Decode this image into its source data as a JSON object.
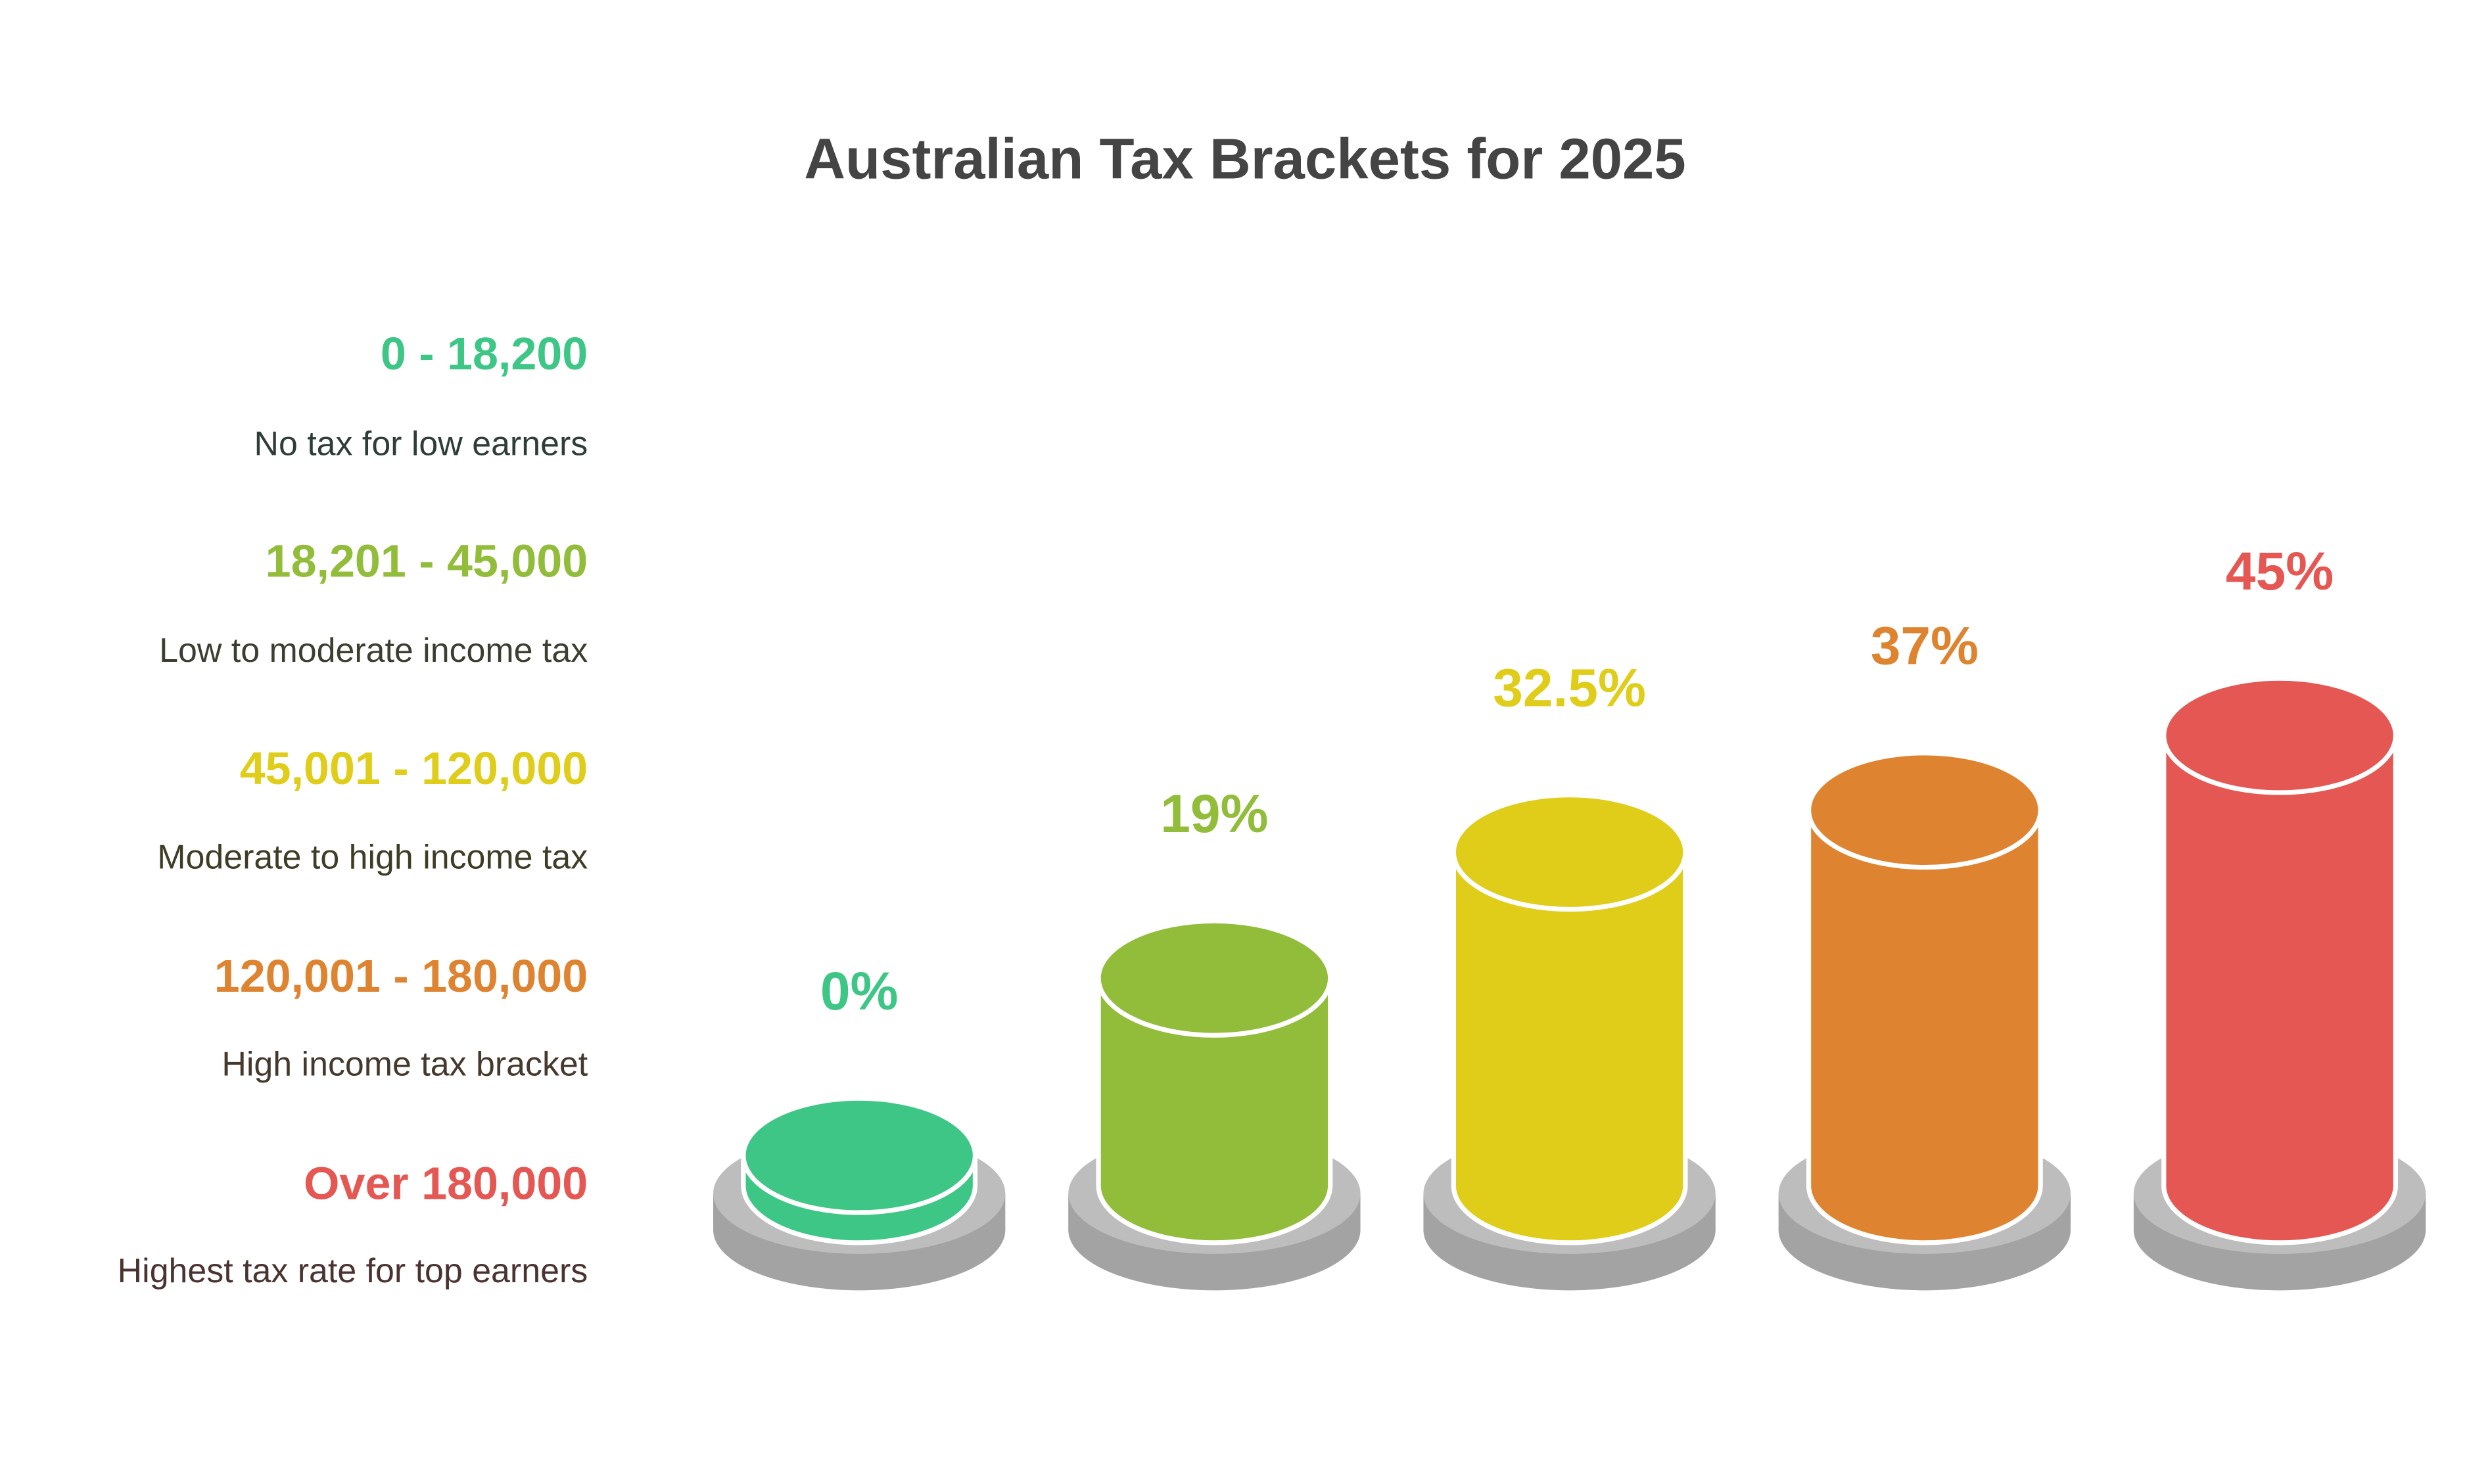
{
  "chart_data": {
    "type": "bar",
    "title": "Australian Tax Brackets for 2025",
    "categories": [
      "0 - 18,200",
      "18,201 - 45,000",
      "45,001 - 120,000",
      "120,001 - 180,000",
      "Over 180,000"
    ],
    "descriptions": [
      "No tax for low earners",
      "Low to moderate income tax",
      "Moderate to high income tax",
      "High income tax bracket",
      "Highest tax rate for top earners"
    ],
    "values": [
      0,
      19,
      32.5,
      37,
      45
    ],
    "value_labels": [
      "0%",
      "19%",
      "32.5%",
      "37%",
      "45%"
    ],
    "colors": [
      "#3ec686",
      "#92bd3a",
      "#dfcd1a",
      "#de8431",
      "#e55753"
    ]
  }
}
